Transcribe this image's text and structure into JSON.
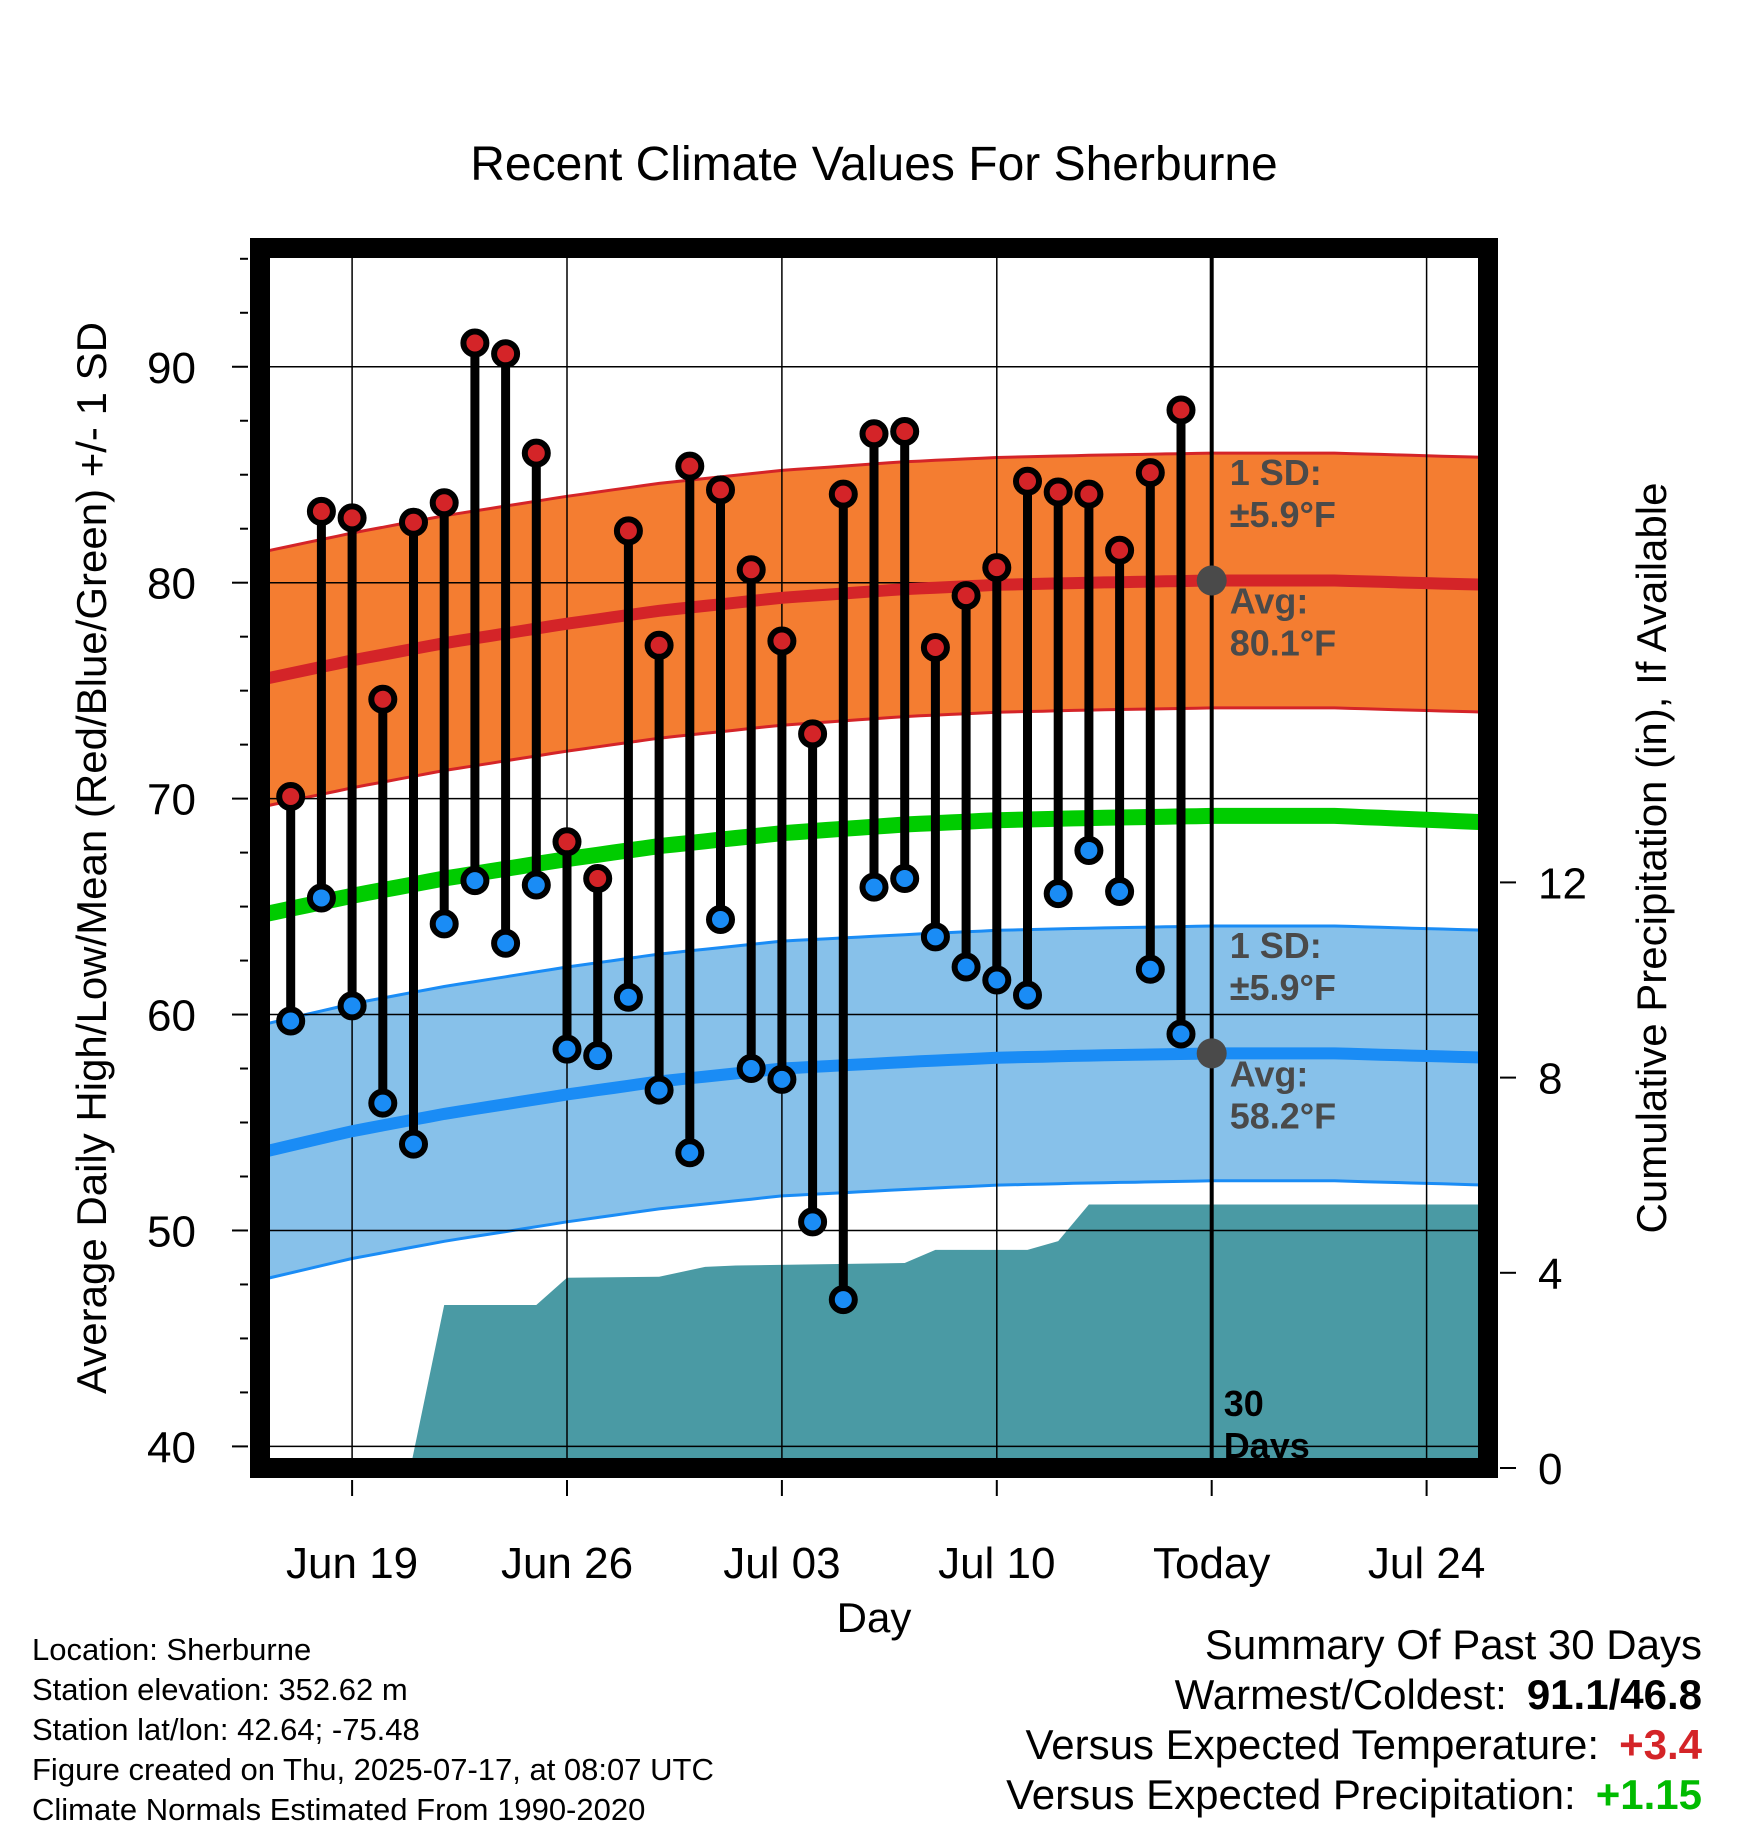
{
  "colors": {
    "high_band": "#f47d31",
    "high_mean": "#d42428",
    "low_band": "#87c1ea",
    "low_mean": "#1a8cf5",
    "mean": "#00cc00",
    "precip": "#4a9aa4",
    "high_marker": "#d42428",
    "low_marker": "#1a8cf5",
    "avg_marker": "#4a4a4a",
    "temp_anomaly": "#d42428",
    "precip_anomaly": "#00bb00"
  },
  "chart_data": {
    "type": "line",
    "title": "Recent Climate Values For Sherburne",
    "xlabel": "Day",
    "ylabel": "Average Daily High/Low/Mean (Red/Blue/Green) +/- 1 SD",
    "y2label": "Cumulative Precipitation (in), If Available",
    "x_ticks": [
      "Jun 19",
      "Jun 26",
      "Jul 03",
      "Jul 10",
      "Today",
      "Jul 24"
    ],
    "x_tick_days": [
      0,
      7,
      14,
      21,
      28,
      35
    ],
    "xlim": [
      -3,
      37
    ],
    "y_ticks": [
      40,
      50,
      60,
      70,
      80,
      90
    ],
    "ylim": [
      39,
      95.5
    ],
    "y2_ticks": [
      0,
      4,
      8,
      12
    ],
    "y2_tick_labels": [
      "0",
      "4",
      "8",
      "12"
    ],
    "y2lim": [
      0,
      25
    ],
    "today_day": 28,
    "today_label": "30\nDays",
    "today_label_lines": [
      "30",
      "Days"
    ],
    "observed": {
      "days": [
        -2,
        -1,
        0,
        1,
        2,
        3,
        4,
        5,
        6,
        7,
        8,
        9,
        10,
        11,
        12,
        13,
        14,
        15,
        16,
        17,
        18,
        19,
        20,
        21,
        22,
        23,
        24,
        25,
        26,
        27
      ],
      "highs": [
        70.1,
        83.3,
        83.0,
        74.6,
        82.8,
        83.7,
        91.1,
        90.6,
        86.0,
        68.0,
        66.3,
        82.4,
        77.1,
        85.4,
        84.3,
        80.6,
        77.3,
        73.0,
        84.1,
        86.9,
        87.0,
        77.0,
        79.4,
        80.7,
        84.7,
        84.2,
        84.1,
        81.5,
        85.1,
        88.0
      ],
      "lows": [
        59.7,
        65.4,
        60.4,
        55.9,
        54.0,
        64.2,
        66.2,
        63.3,
        66.0,
        58.4,
        58.1,
        60.8,
        56.5,
        53.6,
        64.4,
        57.5,
        57.0,
        50.4,
        46.8,
        65.9,
        66.3,
        63.6,
        62.2,
        61.6,
        60.9,
        65.6,
        67.6,
        65.7,
        62.1,
        59.1
      ]
    },
    "normals": {
      "days": [
        -3,
        0,
        3,
        7,
        10,
        14,
        18,
        21,
        24,
        28,
        32,
        37
      ],
      "high_avg": [
        75.5,
        76.4,
        77.2,
        78.1,
        78.7,
        79.3,
        79.7,
        79.9,
        80.0,
        80.1,
        80.1,
        79.9
      ],
      "low_avg": [
        53.6,
        54.6,
        55.4,
        56.3,
        56.9,
        57.5,
        57.8,
        58.0,
        58.1,
        58.2,
        58.2,
        58.0
      ],
      "mean_avg": [
        64.6,
        65.5,
        66.3,
        67.2,
        67.8,
        68.4,
        68.8,
        69.0,
        69.1,
        69.2,
        69.2,
        68.9
      ],
      "high_sd": 5.9,
      "low_sd": 5.9
    },
    "precipitation": {
      "days": [
        -3,
        1.9,
        3.0,
        6.0,
        7.0,
        10.0,
        11.5,
        12.5,
        18.0,
        19.0,
        22.0,
        23.0,
        24.0,
        37.0
      ],
      "cumulative": [
        0,
        0,
        3.34,
        3.34,
        3.9,
        3.92,
        4.12,
        4.15,
        4.2,
        4.47,
        4.47,
        4.65,
        5.4,
        5.4
      ]
    },
    "annotations": {
      "high_sd": [
        "1 SD:",
        "±5.9°F"
      ],
      "high_avg": [
        "Avg:",
        "80.1°F"
      ],
      "low_sd": [
        "1 SD:",
        "±5.9°F"
      ],
      "low_avg": [
        "Avg:",
        "58.2°F"
      ]
    }
  },
  "footer": {
    "location": "Location: Sherburne",
    "elevation": "Station elevation: 352.62 m",
    "latlon": "Station lat/lon: 42.64; -75.48",
    "created": "Figure created on Thu, 2025-07-17, at 08:07 UTC",
    "normals": "Climate Normals Estimated From 1990-2020"
  },
  "summary": {
    "heading": "Summary Of Past 30 Days",
    "warm_cold_label": "Warmest/Coldest:",
    "warm_cold_value": "91.1/46.8",
    "temp_label": "Versus Expected Temperature:",
    "temp_value": "+3.4",
    "precip_label": "Versus Expected Precipitation:",
    "precip_value": "+1.15"
  }
}
